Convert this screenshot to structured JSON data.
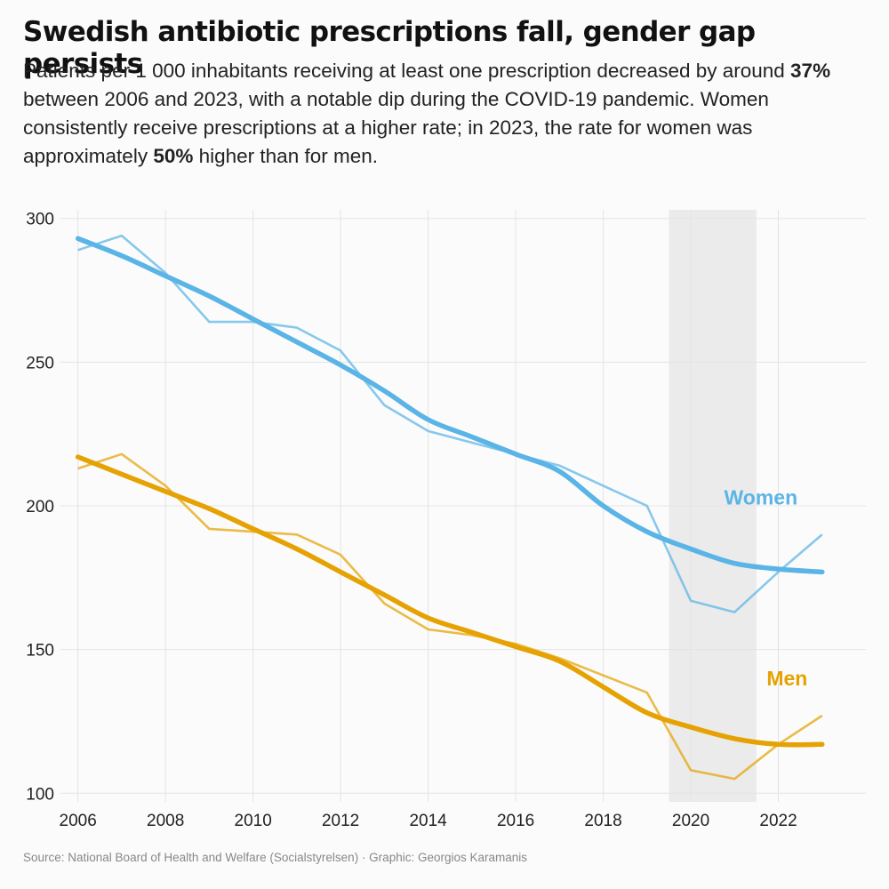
{
  "header": {
    "title": "Swedish antibiotic prescriptions fall, gender gap persists",
    "subtitle_1": "Patients per 1 000 inhabitants receiving at least one prescription decreased by around ",
    "subtitle_b1": "37%",
    "subtitle_2": " between 2006 and 2023, with a notable dip during the COVID-19 pandemic. Women consistently receive prescriptions at a higher rate; in 2023, the rate for women was approximately ",
    "subtitle_b2": "50%",
    "subtitle_3": " higher than for men."
  },
  "footer": {
    "source": "Source: National Board of Health and Welfare (Socialstyrelsen) · Graphic: Georgios Karamanis"
  },
  "chart_data": {
    "type": "line",
    "title": "Swedish antibiotic prescriptions fall, gender gap persists",
    "xlabel": "",
    "ylabel": "",
    "xlim": [
      2005.6,
      2024.0
    ],
    "ylim": [
      97,
      303
    ],
    "x_ticks": [
      2006,
      2008,
      2010,
      2012,
      2014,
      2016,
      2018,
      2020,
      2022
    ],
    "y_ticks": [
      100,
      150,
      200,
      250,
      300
    ],
    "grid": true,
    "highlight": {
      "label": "COVID-19 period",
      "x_range": [
        2019.5,
        2021.5
      ],
      "color": "#ebebeb"
    },
    "series": [
      {
        "name": "Women",
        "color": "#5ab4e6",
        "x": [
          2006,
          2007,
          2008,
          2009,
          2010,
          2011,
          2012,
          2013,
          2014,
          2015,
          2016,
          2017,
          2018,
          2019,
          2020,
          2021,
          2022,
          2023
        ],
        "values": [
          289,
          294,
          281,
          264,
          264,
          262,
          254,
          235,
          226,
          222,
          218,
          214,
          207,
          200,
          167,
          163,
          177,
          190
        ],
        "trend": [
          293,
          287,
          280,
          273,
          265,
          257,
          249,
          240,
          230,
          224,
          218,
          212,
          200,
          191,
          185,
          180,
          178,
          177
        ]
      },
      {
        "name": "Men",
        "color": "#e5a202",
        "x": [
          2006,
          2007,
          2008,
          2009,
          2010,
          2011,
          2012,
          2013,
          2014,
          2015,
          2016,
          2017,
          2018,
          2019,
          2020,
          2021,
          2022,
          2023
        ],
        "values": [
          213,
          218,
          207,
          192,
          191,
          190,
          183,
          166,
          157,
          155,
          152,
          147,
          141,
          135,
          108,
          105,
          117,
          127
        ],
        "trend": [
          217,
          211,
          205,
          199,
          192,
          185,
          177,
          169,
          161,
          156,
          151,
          146,
          137,
          128,
          123,
          119,
          117,
          117
        ]
      }
    ]
  }
}
